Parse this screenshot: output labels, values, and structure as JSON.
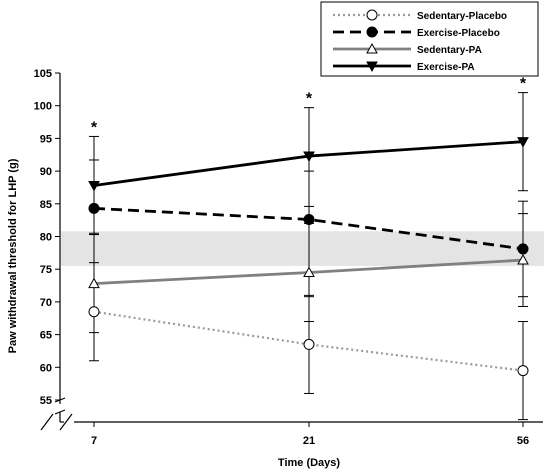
{
  "chart_data": {
    "type": "line",
    "xlabel": "Time (Days)",
    "ylabel": "Paw withdrawal threshold for LHP (g)",
    "categories": [
      "7",
      "21",
      "56"
    ],
    "ylim": [
      50,
      105
    ],
    "yticks": [
      55,
      60,
      65,
      70,
      75,
      80,
      85,
      90,
      95,
      100,
      105
    ],
    "shaded_band": [
      75.5,
      80.8
    ],
    "significance": [
      "*",
      "*",
      "*"
    ],
    "legend_position": "top-right",
    "series": [
      {
        "name": "Sedentary-Placebo",
        "values": [
          68.5,
          63.5,
          59.5
        ],
        "error": [
          [
            61,
            76
          ],
          [
            56,
            71
          ],
          [
            52,
            67
          ]
        ],
        "color": "#999999",
        "line_style": "dotted",
        "marker": "open-circle"
      },
      {
        "name": "Exercise-Placebo",
        "values": [
          84.3,
          82.6,
          78.1
        ],
        "error": [
          [
            80.5,
            91.7
          ],
          [
            70.8,
            90
          ],
          [
            70.8,
            85.4
          ]
        ],
        "color": "#000000",
        "line_style": "dashed",
        "marker": "filled-circle"
      },
      {
        "name": "Sedentary-PA",
        "values": [
          72.8,
          74.5,
          76.4
        ],
        "error": [
          [
            65.3,
            80.3
          ],
          [
            67,
            82
          ],
          [
            69.3,
            83.5
          ]
        ],
        "color": "#808080",
        "line_style": "solid",
        "marker": "open-triangle"
      },
      {
        "name": "Exercise-PA",
        "values": [
          87.8,
          92.3,
          94.5
        ],
        "error": [
          [
            80.3,
            95.3
          ],
          [
            84.6,
            99.7
          ],
          [
            87,
            102
          ]
        ],
        "color": "#000000",
        "line_style": "solid",
        "marker": "filled-triangle-down"
      }
    ]
  }
}
